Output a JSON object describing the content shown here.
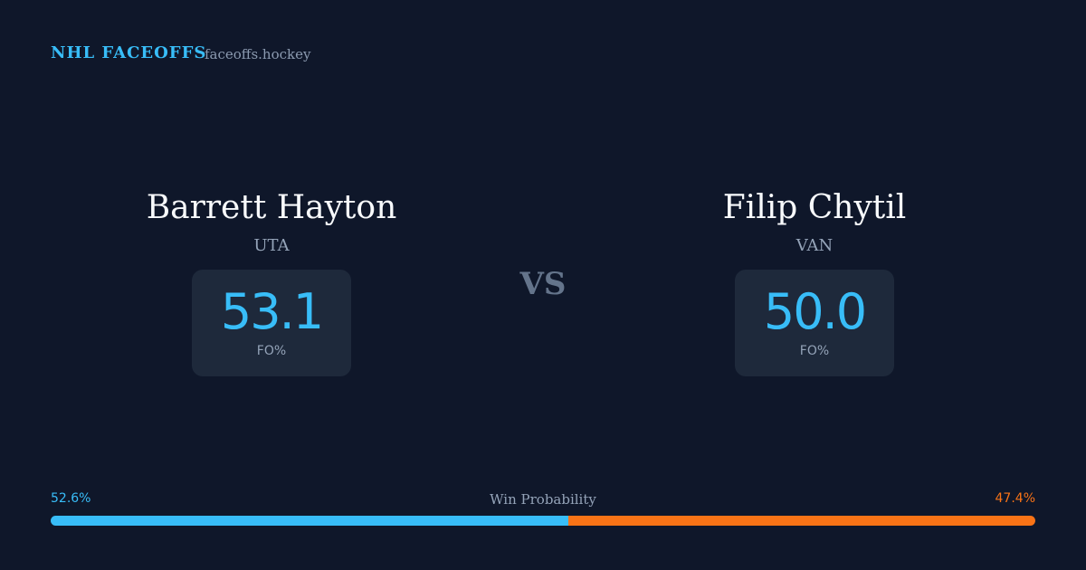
{
  "header": {
    "brand": "NHL FACEOFFS",
    "site": "faceoffs.hockey"
  },
  "players": [
    {
      "name": "Barrett Hayton",
      "team": "UTA",
      "fo_pct": "53.1",
      "fo_label": "FO%"
    },
    {
      "name": "Filip Chytil",
      "team": "VAN",
      "fo_pct": "50.0",
      "fo_label": "FO%"
    }
  ],
  "vs": "VS",
  "win_probability": {
    "label": "Win Probability",
    "left": {
      "value": 52.6,
      "label": "52.6%",
      "color": "#38bdf8"
    },
    "right": {
      "value": 47.4,
      "label": "47.4%",
      "color": "#f97316"
    }
  }
}
